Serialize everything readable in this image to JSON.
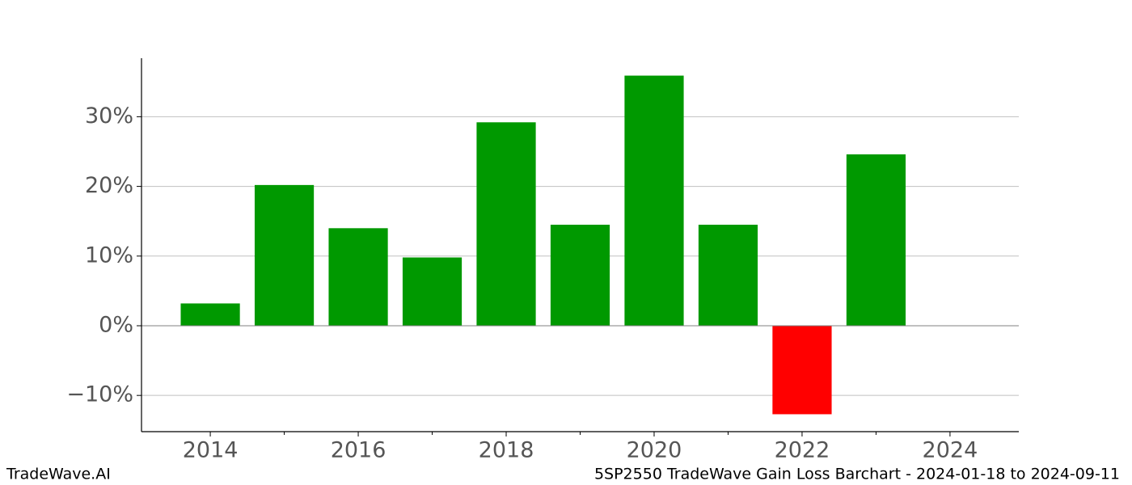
{
  "chart_data": {
    "type": "bar",
    "x": [
      2014,
      2015,
      2016,
      2017,
      2018,
      2019,
      2020,
      2021,
      2022,
      2023
    ],
    "values": [
      3.2,
      20.2,
      14.0,
      9.8,
      29.2,
      14.5,
      35.9,
      14.5,
      -12.7,
      24.6
    ],
    "colors": [
      "#009900",
      "#009900",
      "#009900",
      "#009900",
      "#009900",
      "#009900",
      "#009900",
      "#009900",
      "#ff0000",
      "#009900"
    ],
    "bar_width": 0.8,
    "xlim": [
      2013.07,
      2024.93
    ],
    "xticks": [
      2014,
      2016,
      2018,
      2020,
      2022,
      2024
    ],
    "xminorticks": [
      2015,
      2017,
      2019,
      2021,
      2023
    ],
    "ylim": [
      -15.2,
      38.4
    ],
    "yticks": [
      {
        "value": -10,
        "label": "−10%"
      },
      {
        "value": 0,
        "label": "0%"
      },
      {
        "value": 10,
        "label": "10%"
      },
      {
        "value": 20,
        "label": "20%"
      },
      {
        "value": 30,
        "label": "30%"
      }
    ],
    "grid": true
  },
  "footer": {
    "left": "TradeWave.AI",
    "right": "5SP2550 TradeWave Gain Loss Barchart - 2024-01-18 to 2024-09-11"
  }
}
